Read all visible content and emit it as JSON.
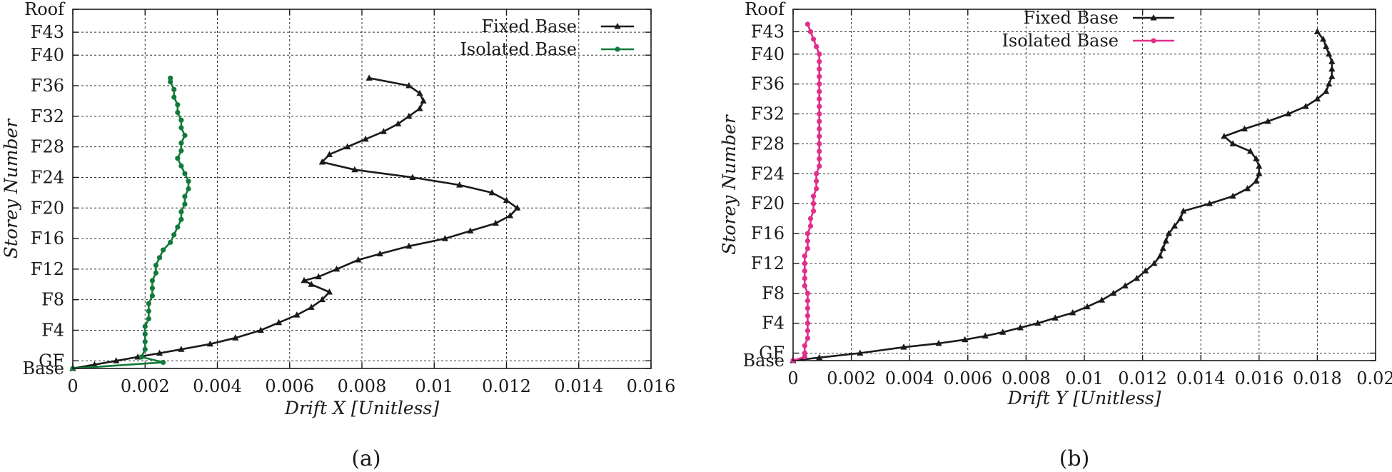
{
  "chart_data": [
    {
      "type": "line",
      "caption": "(a)",
      "xlabel": "Drift X [Unitless]",
      "ylabel": "Storey Number",
      "xlim": [
        0,
        0.016
      ],
      "ylim": [
        0,
        47
      ],
      "xticks": [
        0,
        0.002,
        0.004,
        0.006,
        0.008,
        0.01,
        0.012,
        0.014,
        0.016
      ],
      "xtick_labels": [
        "0",
        "0.002",
        "0.004",
        "0.006",
        "0.008",
        "0.01",
        "0.012",
        "0.014",
        "0.016"
      ],
      "yticks": [
        0,
        1,
        5,
        9,
        13,
        17,
        21,
        25,
        29,
        33,
        37,
        41,
        44,
        47
      ],
      "ytick_labels": [
        "Base",
        "GF",
        "F4",
        "F8",
        "F12",
        "F16",
        "F20",
        "F24",
        "F28",
        "F32",
        "F36",
        "F40",
        "F43",
        "Roof"
      ],
      "grid": true,
      "legend_position": "top-right",
      "series": [
        {
          "name": "Fixed Base",
          "color": "#1a1a1a",
          "marker": "triangle",
          "points": [
            [
              0,
              0
            ],
            [
              0.0006,
              0.5
            ],
            [
              0.0012,
              1
            ],
            [
              0.0018,
              1.5
            ],
            [
              0.0024,
              2
            ],
            [
              0.003,
              2.5
            ],
            [
              0.0038,
              3.2
            ],
            [
              0.0045,
              4
            ],
            [
              0.0052,
              5
            ],
            [
              0.0057,
              6
            ],
            [
              0.0062,
              7
            ],
            [
              0.0066,
              8
            ],
            [
              0.0069,
              9
            ],
            [
              0.0071,
              10
            ],
            [
              0.0066,
              11
            ],
            [
              0.0064,
              11.5
            ],
            [
              0.0068,
              12
            ],
            [
              0.0073,
              13
            ],
            [
              0.0079,
              14.2
            ],
            [
              0.0085,
              15
            ],
            [
              0.0093,
              16
            ],
            [
              0.0103,
              17
            ],
            [
              0.011,
              18
            ],
            [
              0.0117,
              19
            ],
            [
              0.0121,
              20
            ],
            [
              0.0123,
              21
            ],
            [
              0.012,
              22
            ],
            [
              0.0116,
              23
            ],
            [
              0.0107,
              24
            ],
            [
              0.0094,
              25
            ],
            [
              0.0078,
              26
            ],
            [
              0.0069,
              27
            ],
            [
              0.0071,
              28
            ],
            [
              0.0076,
              29
            ],
            [
              0.0081,
              30
            ],
            [
              0.0086,
              31
            ],
            [
              0.009,
              32
            ],
            [
              0.0093,
              33
            ],
            [
              0.0096,
              34
            ],
            [
              0.0097,
              35
            ],
            [
              0.0096,
              36
            ],
            [
              0.0093,
              37
            ],
            [
              0.0082,
              38
            ]
          ]
        },
        {
          "name": "Isolated Base",
          "color": "#127a3a",
          "marker": "circle",
          "points": [
            [
              0,
              0
            ],
            [
              0.0025,
              0.8
            ],
            [
              0.0019,
              1.5
            ],
            [
              0.002,
              2.5
            ],
            [
              0.002,
              3.5
            ],
            [
              0.002,
              4.5
            ],
            [
              0.002,
              5.5
            ],
            [
              0.0021,
              6.5
            ],
            [
              0.0021,
              7.5
            ],
            [
              0.0021,
              8.5
            ],
            [
              0.0022,
              9.5
            ],
            [
              0.0022,
              10.5
            ],
            [
              0.0022,
              11.5
            ],
            [
              0.0023,
              12.5
            ],
            [
              0.0023,
              13.5
            ],
            [
              0.0024,
              14.5
            ],
            [
              0.0025,
              15.5
            ],
            [
              0.0027,
              16.5
            ],
            [
              0.0028,
              17.5
            ],
            [
              0.0029,
              18.5
            ],
            [
              0.003,
              19.5
            ],
            [
              0.003,
              20.5
            ],
            [
              0.0031,
              21.5
            ],
            [
              0.0031,
              22.5
            ],
            [
              0.0032,
              23.5
            ],
            [
              0.0032,
              24.5
            ],
            [
              0.0031,
              25.5
            ],
            [
              0.003,
              26.5
            ],
            [
              0.0029,
              27.5
            ],
            [
              0.003,
              28.5
            ],
            [
              0.003,
              29.5
            ],
            [
              0.0031,
              30.5
            ],
            [
              0.003,
              31.5
            ],
            [
              0.003,
              32.5
            ],
            [
              0.0029,
              33.5
            ],
            [
              0.0029,
              34.5
            ],
            [
              0.0028,
              35.5
            ],
            [
              0.0028,
              36.5
            ],
            [
              0.0027,
              37.5
            ],
            [
              0.0027,
              38
            ]
          ]
        }
      ]
    },
    {
      "type": "line",
      "caption": "(b)",
      "xlabel": "Drift Y [Unitless]",
      "ylabel": "Storey Number",
      "xlim": [
        0,
        0.02
      ],
      "ylim": [
        0,
        47
      ],
      "xticks": [
        0,
        0.002,
        0.004,
        0.006,
        0.008,
        0.01,
        0.012,
        0.014,
        0.016,
        0.018,
        0.02
      ],
      "xtick_labels": [
        "0",
        "0.002",
        "0.004",
        "0.006",
        "0.008",
        "0.01",
        "0.012",
        "0.014",
        "0.016",
        "0.018",
        "0.02"
      ],
      "yticks": [
        0,
        1,
        5,
        9,
        13,
        17,
        21,
        25,
        29,
        33,
        37,
        41,
        44,
        47
      ],
      "ytick_labels": [
        "Base",
        "GF",
        "F4",
        "F8",
        "F12",
        "F16",
        "F20",
        "F24",
        "F28",
        "F32",
        "F36",
        "F40",
        "F43",
        "Roof"
      ],
      "grid": true,
      "legend_position": "top-right",
      "series": [
        {
          "name": "Fixed Base",
          "color": "#1a1a1a",
          "marker": "triangle",
          "points": [
            [
              0,
              0
            ],
            [
              0.0009,
              0.4
            ],
            [
              0.0023,
              1
            ],
            [
              0.0038,
              1.8
            ],
            [
              0.005,
              2.3
            ],
            [
              0.0059,
              2.8
            ],
            [
              0.0066,
              3.3
            ],
            [
              0.0072,
              3.8
            ],
            [
              0.0078,
              4.4
            ],
            [
              0.0084,
              5
            ],
            [
              0.009,
              5.7
            ],
            [
              0.0096,
              6.4
            ],
            [
              0.0101,
              7.2
            ],
            [
              0.0106,
              8.1
            ],
            [
              0.011,
              9
            ],
            [
              0.0114,
              10
            ],
            [
              0.0118,
              11
            ],
            [
              0.0121,
              12
            ],
            [
              0.0124,
              13
            ],
            [
              0.0126,
              14
            ],
            [
              0.0127,
              15
            ],
            [
              0.0128,
              16
            ],
            [
              0.0129,
              17
            ],
            [
              0.0131,
              18
            ],
            [
              0.0133,
              19
            ],
            [
              0.0134,
              20
            ],
            [
              0.0143,
              21
            ],
            [
              0.0151,
              22
            ],
            [
              0.0156,
              23
            ],
            [
              0.0159,
              24
            ],
            [
              0.016,
              25
            ],
            [
              0.016,
              26
            ],
            [
              0.0159,
              27
            ],
            [
              0.0157,
              28
            ],
            [
              0.0151,
              29
            ],
            [
              0.0148,
              30
            ],
            [
              0.0155,
              31
            ],
            [
              0.0163,
              32
            ],
            [
              0.017,
              33
            ],
            [
              0.0176,
              34
            ],
            [
              0.018,
              35
            ],
            [
              0.0183,
              36
            ],
            [
              0.0184,
              37
            ],
            [
              0.0185,
              38
            ],
            [
              0.0185,
              39
            ],
            [
              0.0185,
              40
            ],
            [
              0.0184,
              41
            ],
            [
              0.0183,
              42
            ],
            [
              0.0182,
              43
            ],
            [
              0.018,
              44
            ]
          ]
        },
        {
          "name": "Isolated Base",
          "color": "#e02f8a",
          "marker": "circle",
          "points": [
            [
              0,
              0
            ],
            [
              0.0004,
              0.5
            ],
            [
              0.0004,
              1
            ],
            [
              0.0004,
              2
            ],
            [
              0.0005,
              3
            ],
            [
              0.0005,
              4
            ],
            [
              0.0005,
              5
            ],
            [
              0.0005,
              6
            ],
            [
              0.0005,
              7
            ],
            [
              0.0005,
              8
            ],
            [
              0.0005,
              9
            ],
            [
              0.0004,
              10
            ],
            [
              0.0004,
              11
            ],
            [
              0.0004,
              12
            ],
            [
              0.0004,
              13
            ],
            [
              0.0004,
              14
            ],
            [
              0.0005,
              15
            ],
            [
              0.0005,
              16
            ],
            [
              0.0005,
              17
            ],
            [
              0.0006,
              18
            ],
            [
              0.0006,
              19
            ],
            [
              0.0007,
              20
            ],
            [
              0.0007,
              21
            ],
            [
              0.0007,
              22
            ],
            [
              0.0008,
              23
            ],
            [
              0.0008,
              24
            ],
            [
              0.0008,
              25
            ],
            [
              0.0009,
              26
            ],
            [
              0.0009,
              27
            ],
            [
              0.0009,
              28
            ],
            [
              0.0009,
              29
            ],
            [
              0.0009,
              30
            ],
            [
              0.0009,
              31
            ],
            [
              0.0009,
              32
            ],
            [
              0.0009,
              33
            ],
            [
              0.0009,
              34
            ],
            [
              0.0009,
              35
            ],
            [
              0.0009,
              36
            ],
            [
              0.0009,
              37
            ],
            [
              0.0009,
              38
            ],
            [
              0.0009,
              39
            ],
            [
              0.0009,
              40
            ],
            [
              0.0009,
              41
            ],
            [
              0.0008,
              42
            ],
            [
              0.0007,
              43
            ],
            [
              0.0006,
              44
            ],
            [
              0.0005,
              45
            ]
          ]
        }
      ]
    }
  ]
}
